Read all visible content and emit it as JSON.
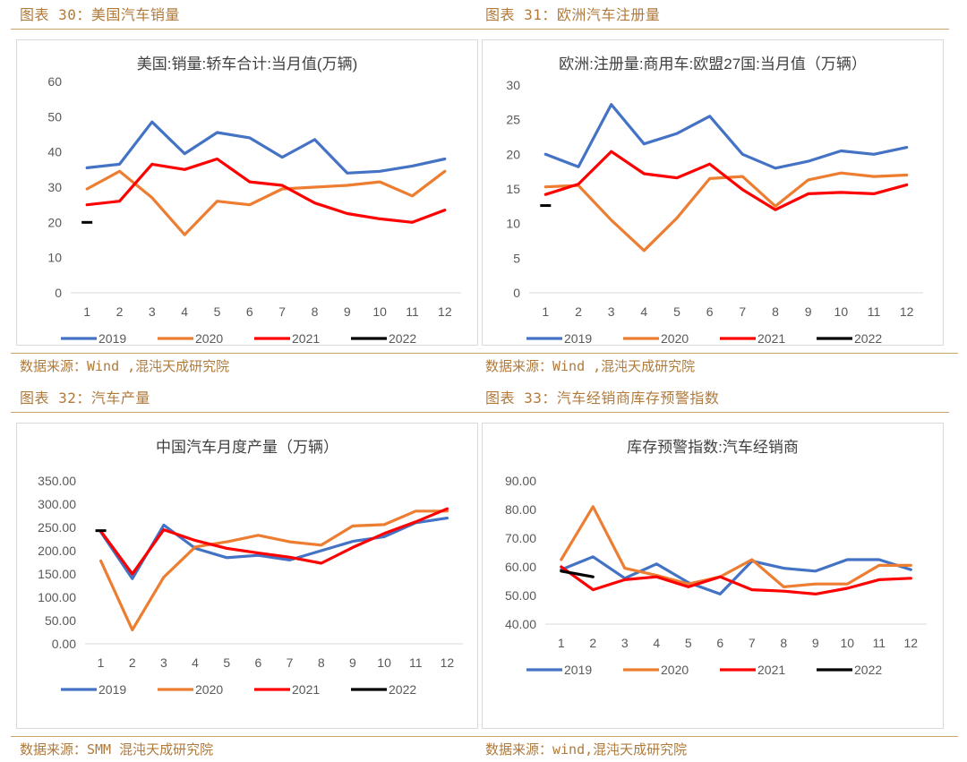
{
  "panels": [
    {
      "caption": "图表 30：美国汽车销量",
      "source": "数据来源：Wind ,混沌天成研究院",
      "chart_data": {
        "type": "line",
        "title": "美国:销量:轿车合计:当月值(万辆)",
        "categories": [
          "1",
          "2",
          "3",
          "4",
          "5",
          "6",
          "7",
          "8",
          "9",
          "10",
          "11",
          "12"
        ],
        "ylim": [
          0,
          60
        ],
        "yticks": [
          "0",
          "10",
          "20",
          "30",
          "40",
          "50",
          "60"
        ],
        "grid": false,
        "legend": "bottom",
        "series": [
          {
            "name": "2019",
            "color": "#4472c4",
            "values": [
              35.5,
              36.5,
              48.5,
              39.5,
              45.5,
              44,
              38.5,
              43.5,
              34,
              34.5,
              36,
              38
            ]
          },
          {
            "name": "2020",
            "color": "#ed7d31",
            "values": [
              29.5,
              34.5,
              27,
              16.5,
              26,
              25,
              29.5,
              30,
              30.5,
              31.5,
              27.5,
              34.5
            ]
          },
          {
            "name": "2021",
            "color": "#ff0000",
            "values": [
              25,
              26,
              36.5,
              35,
              38,
              31.5,
              30.5,
              25.5,
              22.5,
              21,
              20,
              23.5
            ]
          },
          {
            "name": "2022",
            "color": "#000000",
            "values": [
              20,
              null,
              null,
              null,
              null,
              null,
              null,
              null,
              null,
              null,
              null,
              null
            ]
          }
        ]
      }
    },
    {
      "caption": "图表 31：欧洲汽车注册量",
      "source": "数据来源：Wind ,混沌天成研究院",
      "chart_data": {
        "type": "line",
        "title": "欧洲:注册量:商用车:欧盟27国:当月值（万辆）",
        "categories": [
          "1",
          "2",
          "3",
          "4",
          "5",
          "6",
          "7",
          "8",
          "9",
          "10",
          "11",
          "12"
        ],
        "ylim": [
          0,
          30
        ],
        "yticks": [
          "0",
          "5",
          "10",
          "15",
          "20",
          "25",
          "30"
        ],
        "grid": false,
        "legend": "bottom",
        "series": [
          {
            "name": "2019",
            "color": "#4472c4",
            "values": [
              20,
              18.2,
              27.2,
              21.5,
              23,
              25.5,
              20,
              18,
              19,
              20.5,
              20,
              21
            ]
          },
          {
            "name": "2020",
            "color": "#ed7d31",
            "values": [
              15.3,
              15.5,
              10.5,
              6.1,
              10.8,
              16.5,
              16.8,
              12.5,
              16.3,
              17.3,
              16.8,
              17
            ]
          },
          {
            "name": "2021",
            "color": "#ff0000",
            "values": [
              14.2,
              15.7,
              20.4,
              17.2,
              16.6,
              18.6,
              14.9,
              12,
              14.3,
              14.5,
              14.3,
              15.6
            ]
          },
          {
            "name": "2022",
            "color": "#000000",
            "values": [
              12.6,
              null,
              null,
              null,
              null,
              null,
              null,
              null,
              null,
              null,
              null,
              null
            ]
          }
        ]
      }
    },
    {
      "caption": "图表 32：汽车产量",
      "source": "数据来源：SMM 混沌天成研究院",
      "chart_data": {
        "type": "line",
        "title": "中国汽车月度产量（万辆）",
        "categories": [
          "1",
          "2",
          "3",
          "4",
          "5",
          "6",
          "7",
          "8",
          "9",
          "10",
          "11",
          "12"
        ],
        "ylim": [
          0,
          350
        ],
        "yticks": [
          "0.00",
          "50.00",
          "100.00",
          "150.00",
          "200.00",
          "250.00",
          "300.00",
          "350.00"
        ],
        "grid": false,
        "legend": "bottom",
        "series": [
          {
            "name": "2019",
            "color": "#4472c4",
            "values": [
              240,
              140,
              255,
              205,
              185,
              190,
              180,
              200,
              220,
              230,
              260,
              270
            ]
          },
          {
            "name": "2020",
            "color": "#ed7d31",
            "values": [
              178,
              30,
              143,
              208,
              219,
              233,
              219,
              212,
              253,
              256,
              285,
              285
            ]
          },
          {
            "name": "2021",
            "color": "#ff0000",
            "values": [
              242,
              150,
              245,
              222,
              205,
              195,
              186,
              173,
              207,
              237,
              262,
              290
            ]
          },
          {
            "name": "2022",
            "color": "#000000",
            "values": [
              243,
              null,
              null,
              null,
              null,
              null,
              null,
              null,
              null,
              null,
              null,
              null
            ]
          }
        ]
      }
    },
    {
      "caption": "图表 33：汽车经销商库存预警指数",
      "source": "数据来源：wind,混沌天成研究院",
      "chart_data": {
        "type": "line",
        "title": "库存预警指数:汽车经销商",
        "categories": [
          "1",
          "2",
          "3",
          "4",
          "5",
          "6",
          "7",
          "8",
          "9",
          "10",
          "11",
          "12"
        ],
        "ylim": [
          40,
          90
        ],
        "yticks": [
          "40.00",
          "50.00",
          "60.00",
          "70.00",
          "80.00",
          "90.00"
        ],
        "grid": false,
        "legend": "bottom",
        "series": [
          {
            "name": "2019",
            "color": "#4472c4",
            "values": [
              59,
              63.5,
              56,
              61,
              54.5,
              50.5,
              62,
              59.5,
              58.5,
              62.5,
              62.5,
              59
            ]
          },
          {
            "name": "2020",
            "color": "#ed7d31",
            "values": [
              62.5,
              81,
              59.5,
              57,
              54,
              56.5,
              62.5,
              53,
              54,
              54,
              60.5,
              60.5
            ]
          },
          {
            "name": "2021",
            "color": "#ff0000",
            "values": [
              60,
              52,
              55.5,
              56.5,
              53,
              56.5,
              52,
              51.5,
              50.5,
              52.5,
              55.5,
              56
            ]
          },
          {
            "name": "2022",
            "color": "#000000",
            "values": [
              58.5,
              56.5,
              null,
              null,
              null,
              null,
              null,
              null,
              null,
              null,
              null,
              null
            ]
          }
        ]
      }
    }
  ]
}
